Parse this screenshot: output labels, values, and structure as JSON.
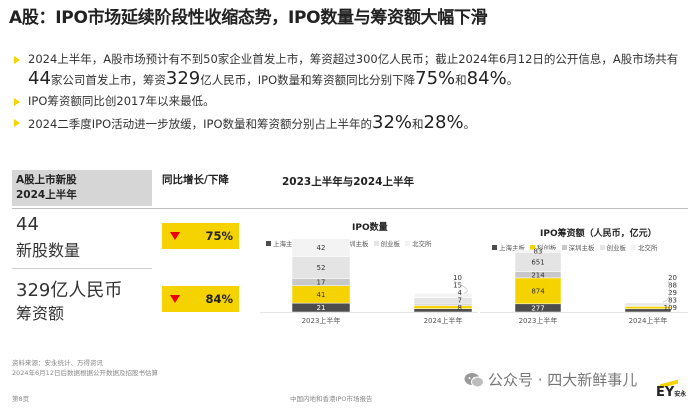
{
  "title": "A股：IPO市场延续阶段性收缩态势，IPO数量与筹资额大幅下滑",
  "bullets": [
    {
      "a": "2024上半年，A股市场预计有不到50家企业首发上市，筹资超过300亿人民币；截止2024年6月12日的公开信息，A股市场共有",
      "n1": "44",
      "b": "家公司首发上市，筹资",
      "n2": "329",
      "c": "亿人民币，IPO数量和筹资额同比分别下降",
      "n3": "75%",
      "d": "和",
      "n4": "84%",
      "e": "。"
    },
    {
      "text": "IPO筹资额同比创2017年以来最低。"
    },
    {
      "a": "2024二季度IPO活动进一步放缓，IPO数量和筹资额分别占上半年的",
      "n1": "32%",
      "b": "和",
      "n2": "28%",
      "c": "。"
    }
  ],
  "table": {
    "col1_header_line1": "A股上市新股",
    "col1_header_line2": "2024上半年",
    "col2_header": "同比增长/下降",
    "col3_header": "2023上半年与2024上半年",
    "rows": [
      {
        "value": "44",
        "label": "新股数量",
        "change": "75%"
      },
      {
        "value": "329亿人民币",
        "label": "筹资额",
        "change": "84%"
      }
    ]
  },
  "legend": [
    {
      "name": "上海主板",
      "color": "#4d4d4d"
    },
    {
      "name": "科创板",
      "color": "#f5d300"
    },
    {
      "name": "深圳主板",
      "color": "#c8c8c8"
    },
    {
      "name": "创业板",
      "color": "#e4e4e4"
    },
    {
      "name": "北交所",
      "color": "#f3f3f3"
    }
  ],
  "chart_data": [
    {
      "type": "bar",
      "stacked": true,
      "title": "IPO数量",
      "categories": [
        "2023上半年",
        "2024上半年"
      ],
      "series": [
        {
          "name": "上海主板",
          "values": [
            21,
            8
          ]
        },
        {
          "name": "科创板",
          "values": [
            41,
            7
          ]
        },
        {
          "name": "深圳主板",
          "values": [
            17,
            4
          ]
        },
        {
          "name": "创业板",
          "values": [
            52,
            15
          ]
        },
        {
          "name": "北交所",
          "values": [
            42,
            10
          ]
        }
      ],
      "legend": "top"
    },
    {
      "type": "bar",
      "stacked": true,
      "title": "IPO筹资额（人民币，亿元）",
      "categories": [
        "2023上半年",
        "2024上半年"
      ],
      "series": [
        {
          "name": "上海主板",
          "values": [
            277,
            109
          ]
        },
        {
          "name": "科创板",
          "values": [
            874,
            83
          ]
        },
        {
          "name": "深圳主板",
          "values": [
            214,
            29
          ]
        },
        {
          "name": "创业板",
          "values": [
            651,
            88
          ]
        },
        {
          "name": "北交所",
          "values": [
            83,
            20
          ]
        }
      ],
      "legend": "top"
    }
  ],
  "footer": {
    "source": "资料来源：安永统计、万得资讯",
    "note": "2024年6月12日后数据根据公开数据及招股书估算",
    "page": "第8页",
    "report": "中国内地和香港IPO市场报告",
    "wechat": "公众号 · 四大新鲜事儿",
    "logo": "EY",
    "logo_cn": "安永"
  }
}
